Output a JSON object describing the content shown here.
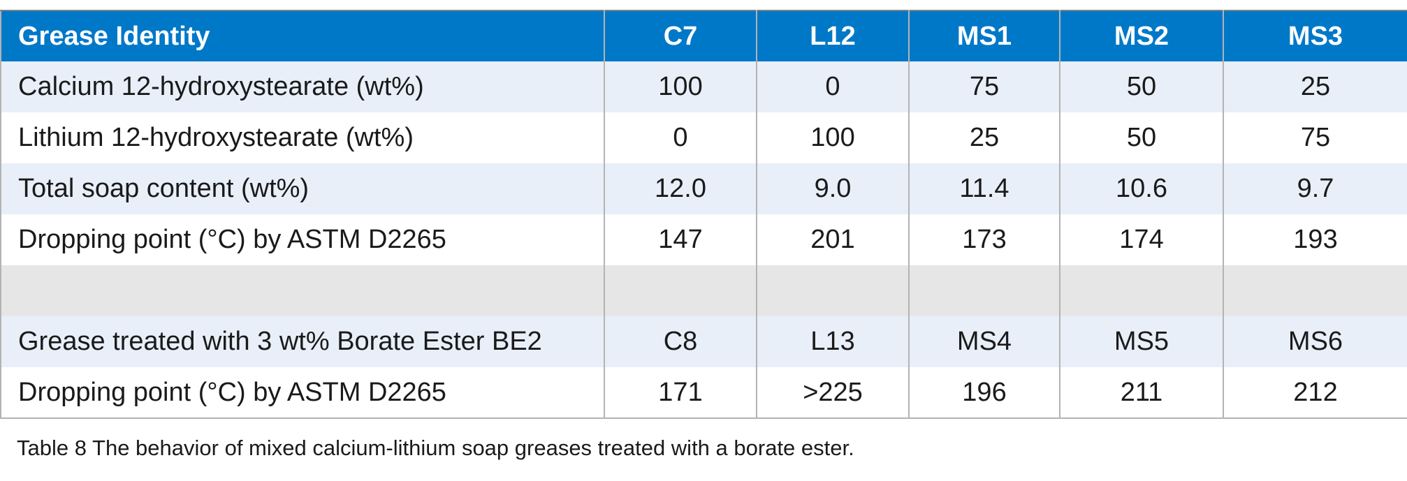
{
  "header": {
    "label": "Grease Identity",
    "columns": [
      "C7",
      "L12",
      "MS1",
      "MS2",
      "MS3"
    ]
  },
  "rows": [
    {
      "label": "Calcium 12-hydroxystearate (wt%)",
      "values": [
        "100",
        "0",
        "75",
        "50",
        "25"
      ]
    },
    {
      "label": "Lithium 12-hydroxystearate (wt%)",
      "values": [
        "0",
        "100",
        "25",
        "50",
        "75"
      ]
    },
    {
      "label": "Total soap content (wt%)",
      "values": [
        "12.0",
        "9.0",
        "11.4",
        "10.6",
        "9.7"
      ]
    },
    {
      "label": "Dropping point (°C) by ASTM D2265",
      "values": [
        "147",
        "201",
        "173",
        "174",
        "193"
      ]
    },
    {
      "label": "",
      "values": [
        "",
        "",
        "",
        "",
        ""
      ]
    },
    {
      "label": "Grease treated with 3 wt% Borate Ester BE2",
      "values": [
        "C8",
        "L13",
        "MS4",
        "MS5",
        "MS6"
      ]
    },
    {
      "label": "Dropping point (°C) by ASTM D2265",
      "values": [
        "171",
        ">225",
        "196",
        "211",
        "212"
      ]
    }
  ],
  "caption": "Table 8 The behavior of mixed calcium-lithium soap greases treated with a borate ester.",
  "colors": {
    "header_bg": "#0078c8",
    "header_text": "#ffffff",
    "row_shade": "#e8eff9",
    "row_gap": "#e6e6e6",
    "border": "#b3b3b3"
  }
}
